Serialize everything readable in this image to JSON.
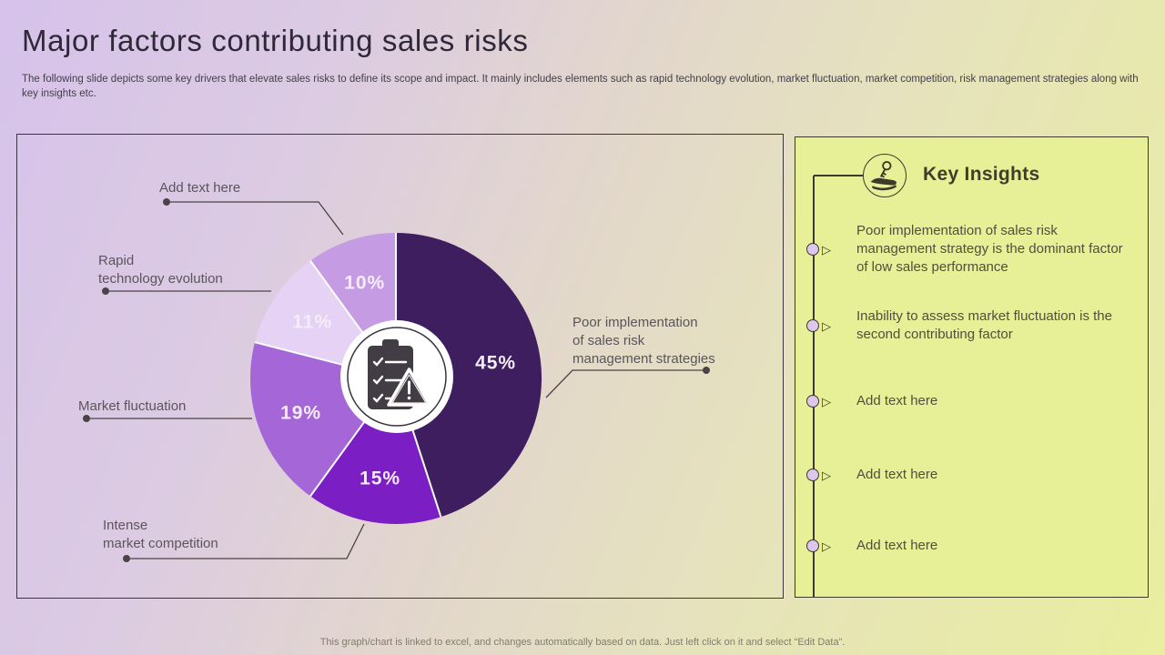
{
  "slide": {
    "title": "Major factors contributing sales risks",
    "subtitle": "The following slide depicts some key drivers that elevate sales risks to define its scope and impact. It mainly includes elements such as rapid technology evolution, market fluctuation, market competition, risk management strategies along with key insights etc.",
    "footer": "This graph/chart is linked to excel,  and changes automatically based on data. Just left click on it and select “Edit Data”."
  },
  "chart_data": {
    "type": "pie",
    "donut": true,
    "start_angle_deg": 0,
    "direction": "clockwise",
    "slices": [
      {
        "label": "Poor implementation of sales risk management strategies",
        "value": 45,
        "color": "#3E1E5F"
      },
      {
        "label": "Intense market competition",
        "value": 15,
        "color": "#7B1EC3"
      },
      {
        "label": "Market fluctuation",
        "value": 19,
        "color": "#A566D8"
      },
      {
        "label": "Rapid technology evolution",
        "value": 11,
        "color": "#E6D2F4"
      },
      {
        "label": "Add text here",
        "value": 10,
        "color": "#C59CE3"
      }
    ],
    "data_label_format": "percent",
    "data_label_color": "#F5ECFA",
    "center_icon": "clipboard-warning-icon",
    "legend": "callout-labels"
  },
  "callouts": {
    "add_text": "Add text here",
    "rapid_tech": "Rapid\ntechnology evolution",
    "market_fluctuation": "Market fluctuation",
    "intense_competition": "Intense\nmarket competition",
    "poor_implementation": "Poor implementation\nof sales risk\nmanagement strategies"
  },
  "insights": {
    "icon": "hand-key-icon",
    "title": "Key Insights",
    "items": [
      "Poor implementation of sales risk management strategy is the dominant factor of low sales performance",
      "Inability to assess market fluctuation is the second contributing factor",
      "Add text here",
      "Add text here",
      "Add text here"
    ]
  }
}
